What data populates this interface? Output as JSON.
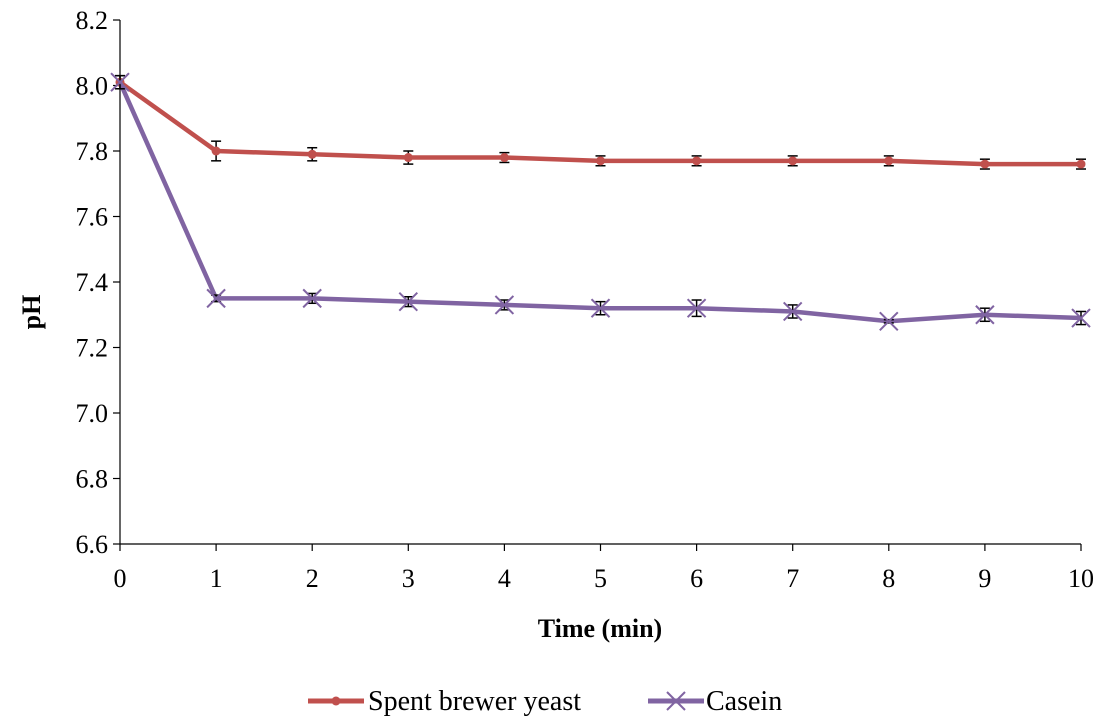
{
  "chart_data": {
    "type": "line",
    "title": "",
    "xlabel": "Time (min)",
    "ylabel": "pH",
    "x": [
      0,
      1,
      2,
      3,
      4,
      5,
      6,
      7,
      8,
      9,
      10
    ],
    "xlim": [
      0,
      10
    ],
    "ylim": [
      6.6,
      8.2
    ],
    "y_ticks": [
      "6.6",
      "6.8",
      "7.0",
      "7.2",
      "7.4",
      "7.6",
      "7.8",
      "8.0",
      "8.2"
    ],
    "x_ticks": [
      "0",
      "1",
      "2",
      "3",
      "4",
      "5",
      "6",
      "7",
      "8",
      "9",
      "10"
    ],
    "grid": false,
    "legend_position": "bottom",
    "series": [
      {
        "name": "Spent brewer yeast",
        "color": "#c0504d",
        "marker": "circle",
        "values": [
          8.01,
          7.8,
          7.79,
          7.78,
          7.78,
          7.77,
          7.77,
          7.77,
          7.77,
          7.76,
          7.76
        ],
        "errors": [
          0.02,
          0.03,
          0.02,
          0.02,
          0.015,
          0.015,
          0.015,
          0.015,
          0.015,
          0.015,
          0.015
        ]
      },
      {
        "name": "Casein",
        "color": "#8064a2",
        "marker": "x",
        "values": [
          8.01,
          7.35,
          7.35,
          7.34,
          7.33,
          7.32,
          7.32,
          7.31,
          7.28,
          7.3,
          7.29
        ],
        "errors": [
          0.02,
          0.01,
          0.015,
          0.015,
          0.015,
          0.02,
          0.025,
          0.02,
          0.005,
          0.02,
          0.02
        ]
      }
    ]
  }
}
